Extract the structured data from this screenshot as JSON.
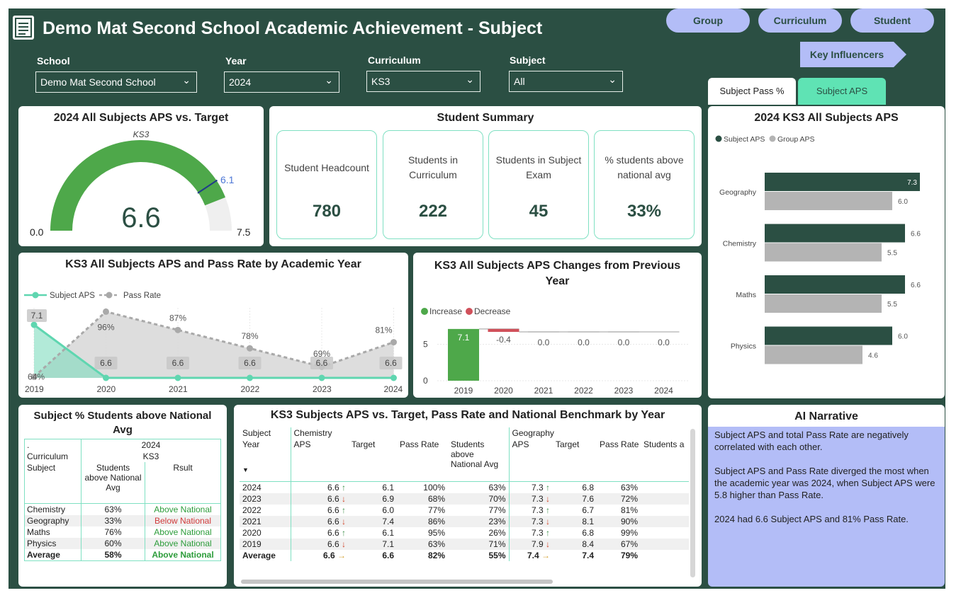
{
  "header": {
    "title": "Demo Mat Second School Academic Achievement - Subject",
    "nav": [
      "Group",
      "Curriculum",
      "Student"
    ],
    "key_influencers": "Key Influencers",
    "tabs": [
      "Subject Pass %",
      "Subject APS"
    ]
  },
  "filters": [
    {
      "label": "School",
      "value": "Demo Mat Second School"
    },
    {
      "label": "Year",
      "value": "2024"
    },
    {
      "label": "Curriculum",
      "value": "KS3"
    },
    {
      "label": "Subject",
      "value": "All"
    }
  ],
  "gauge": {
    "title": "2024 All Subjects APS vs. Target",
    "subtitle": "KS3",
    "value": "6.6",
    "value_num": 6.6,
    "target": "6.1",
    "target_num": 6.1,
    "min": "0.0",
    "min_num": 0,
    "max": "7.5",
    "max_num": 7.5,
    "colors": {
      "fill": "#4ea84a",
      "track": "#efefef",
      "target": "#1f3c88"
    }
  },
  "summary": {
    "title": "Student Summary",
    "boxes": [
      {
        "label": "Student Headcount",
        "value": "780"
      },
      {
        "label": "Students in Curriculum",
        "value": "222"
      },
      {
        "label": "Students in Subject Exam",
        "value": "45"
      },
      {
        "label": "% students above national avg",
        "value": "33%"
      }
    ]
  },
  "bar_panel": {
    "title": "2024 KS3 All Subjects APS"
  },
  "line_panel": {
    "title": "KS3 All Subjects APS and Pass Rate by Academic Year"
  },
  "wf_panel": {
    "title": "KS3 All Subjects APS Changes from Previous Year"
  },
  "chart_data": [
    {
      "type": "bar",
      "title": "2024 KS3 All Subjects APS",
      "orientation": "horizontal",
      "categories": [
        "Geography",
        "Chemistry",
        "Maths",
        "Physics"
      ],
      "series": [
        {
          "name": "Subject APS",
          "values": [
            7.3,
            6.6,
            6.6,
            6.0
          ],
          "labels": [
            "7.3",
            "6.6",
            "6.6",
            "6.0"
          ],
          "color": "#2b4f43"
        },
        {
          "name": "Group APS",
          "values": [
            6.0,
            5.5,
            5.5,
            4.6
          ],
          "labels": [
            "6.0",
            "5.5",
            "5.5",
            "4.6"
          ],
          "color": "#b4b4b4"
        }
      ],
      "xlim": [
        0,
        8
      ],
      "legend": "top-left"
    },
    {
      "type": "line",
      "title": "KS3 All Subjects APS and Pass Rate by Academic Year",
      "x": [
        "2019",
        "2020",
        "2021",
        "2022",
        "2023",
        "2024"
      ],
      "series": [
        {
          "name": "Subject APS",
          "values": [
            7.1,
            6.6,
            6.6,
            6.6,
            6.6,
            6.6
          ],
          "labels": [
            "7.1",
            "6.6",
            "6.6",
            "6.6",
            "6.6",
            "6.6"
          ],
          "color": "#5fd6b0"
        },
        {
          "name": "Pass Rate",
          "values": [
            64,
            96,
            87,
            78,
            69,
            81
          ],
          "labels": [
            "64%",
            "96%",
            "87%",
            "78%",
            "69%",
            "81%"
          ],
          "color": "#a9a9a9"
        }
      ],
      "legend": "top-left"
    },
    {
      "type": "bar",
      "subtype": "waterfall",
      "title": "KS3 All Subjects APS Changes from Previous Year",
      "categories": [
        "2019",
        "2020",
        "2021",
        "2022",
        "2023",
        "2024"
      ],
      "values": [
        7.1,
        -0.4,
        0.0,
        0.0,
        0.0,
        0.0
      ],
      "labels": [
        "7.1",
        "-0.4",
        "0.0",
        "0.0",
        "0.0",
        "0.0"
      ],
      "legend_items": [
        {
          "name": "Increase",
          "color": "#4ea84a"
        },
        {
          "name": "Decrease",
          "color": "#d0505a"
        }
      ],
      "yticks": [
        "0",
        "5"
      ],
      "ylim": [
        0,
        8
      ]
    }
  ],
  "national_table": {
    "title": "Subject % Students above National Avg",
    "hdr_dot": ".",
    "hdr_curriculum": "Curriculum",
    "hdr_subject": "Subject",
    "hdr_year": "2024",
    "hdr_ks": "KS3",
    "col1": "Students above National Avg",
    "col2": "Rsult",
    "rows": [
      {
        "subject": "Chemistry",
        "pct": "63%",
        "result": "Above National",
        "above": true
      },
      {
        "subject": "Geography",
        "pct": "33%",
        "result": "Below National",
        "above": false
      },
      {
        "subject": "Maths",
        "pct": "76%",
        "result": "Above National",
        "above": true
      },
      {
        "subject": "Physics",
        "pct": "60%",
        "result": "Above National",
        "above": true
      }
    ],
    "avg": {
      "subject": "Average",
      "pct": "58%",
      "result": "Above National"
    }
  },
  "matrix": {
    "title": "KS3 Subjects APS vs. Target, Pass Rate and National Benchmark by Year",
    "h_subject": "Subject",
    "h_year": "Year",
    "g1": "Chemistry",
    "g2": "Geography",
    "cols": [
      "APS",
      "Target",
      "Pass Rate",
      "Students above National Avg"
    ],
    "cols2": [
      "APS",
      "Target",
      "Pass Rate",
      "Students a"
    ],
    "rows": [
      {
        "year": "2024",
        "c_aps": "6.6",
        "c_tr": "up",
        "c_tgt": "6.1",
        "c_pr": "100%",
        "c_sn": "63%",
        "g_aps": "7.3",
        "g_tr": "up",
        "g_tgt": "6.8",
        "g_pr": "63%"
      },
      {
        "year": "2023",
        "c_aps": "6.6",
        "c_tr": "down",
        "c_tgt": "6.9",
        "c_pr": "68%",
        "c_sn": "70%",
        "g_aps": "7.3",
        "g_tr": "down",
        "g_tgt": "7.6",
        "g_pr": "72%"
      },
      {
        "year": "2022",
        "c_aps": "6.6",
        "c_tr": "up",
        "c_tgt": "6.0",
        "c_pr": "77%",
        "c_sn": "77%",
        "g_aps": "7.3",
        "g_tr": "up",
        "g_tgt": "6.7",
        "g_pr": "81%"
      },
      {
        "year": "2021",
        "c_aps": "6.6",
        "c_tr": "down",
        "c_tgt": "7.4",
        "c_pr": "86%",
        "c_sn": "23%",
        "g_aps": "7.3",
        "g_tr": "down",
        "g_tgt": "8.1",
        "g_pr": "90%"
      },
      {
        "year": "2020",
        "c_aps": "6.6",
        "c_tr": "up",
        "c_tgt": "6.1",
        "c_pr": "95%",
        "c_sn": "26%",
        "g_aps": "7.3",
        "g_tr": "up",
        "g_tgt": "6.8",
        "g_pr": "99%"
      },
      {
        "year": "2019",
        "c_aps": "6.6",
        "c_tr": "down",
        "c_tgt": "7.1",
        "c_pr": "63%",
        "c_sn": "71%",
        "g_aps": "7.9",
        "g_tr": "down",
        "g_tgt": "8.4",
        "g_pr": "67%"
      }
    ],
    "avg": {
      "year": "Average",
      "c_aps": "6.6",
      "c_tr": "flat",
      "c_tgt": "6.6",
      "c_pr": "82%",
      "c_sn": "55%",
      "g_aps": "7.4",
      "g_tr": "flat",
      "g_tgt": "7.4",
      "g_pr": "79%"
    }
  },
  "narrative": {
    "title": "AI Narrative",
    "paragraphs": [
      "Subject APS and total Pass Rate are negatively correlated with each other.",
      "Subject APS and Pass Rate diverged the most when the academic year was 2024, when Subject APS were 5.8 higher than Pass Rate.",
      "2024 had 6.6 Subject APS and 81% Pass Rate."
    ]
  }
}
